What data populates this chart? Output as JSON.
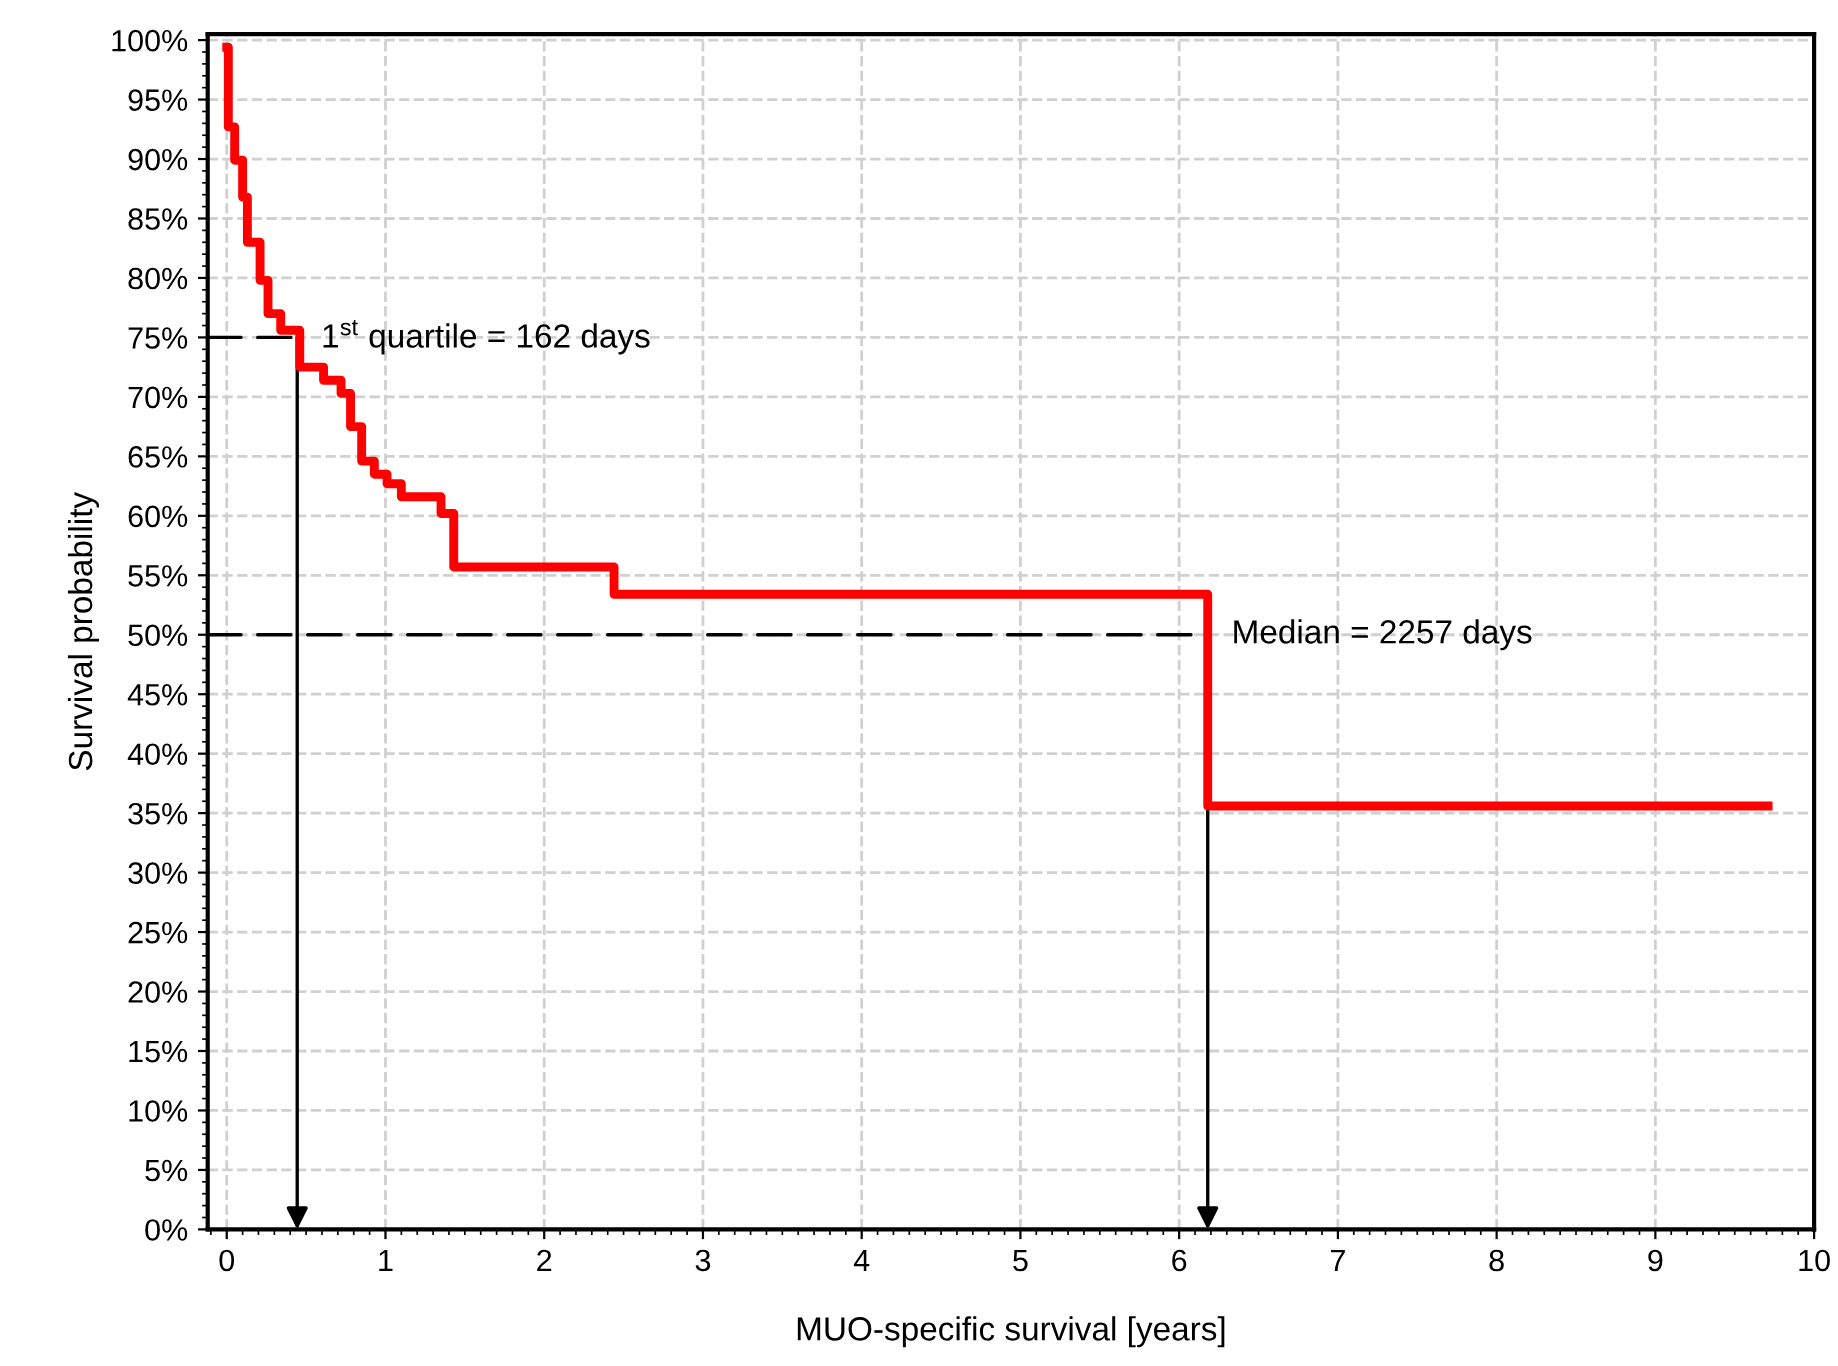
{
  "chart_data": {
    "type": "step",
    "xlabel": "MUO-specific survival [years]",
    "ylabel": "Survival probability",
    "x": [
      0,
      0.01,
      0.05,
      0.1,
      0.13,
      0.21,
      0.26,
      0.34,
      0.46,
      0.61,
      0.72,
      0.78,
      0.85,
      0.93,
      1.01,
      1.1,
      1.35,
      1.43,
      2.44,
      6.18,
      9.71
    ],
    "series": [
      {
        "color": "#ff0000",
        "values": [
          99.4,
          92.7,
          89.9,
          86.8,
          83.0,
          79.8,
          77.0,
          75.6,
          72.5,
          71.4,
          70.3,
          67.5,
          64.6,
          63.5,
          62.7,
          61.6,
          60.2,
          55.7,
          53.4,
          35.6,
          35.6
        ]
      }
    ],
    "xlim": [
      -0.12,
      10
    ],
    "xticks": [
      0,
      1,
      2,
      3,
      4,
      5,
      6,
      7,
      8,
      9,
      10
    ],
    "ylim": [
      0,
      100.5
    ],
    "yticks": [
      {
        "value": 0,
        "label": "0%"
      },
      {
        "value": 5,
        "label": "5%"
      },
      {
        "value": 10,
        "label": "10%"
      },
      {
        "value": 15,
        "label": "15%"
      },
      {
        "value": 20,
        "label": "20%"
      },
      {
        "value": 25,
        "label": "25%"
      },
      {
        "value": 30,
        "label": "30%"
      },
      {
        "value": 35,
        "label": "35%"
      },
      {
        "value": 40,
        "label": "40%"
      },
      {
        "value": 45,
        "label": "45%"
      },
      {
        "value": 50,
        "label": "50%"
      },
      {
        "value": 55,
        "label": "55%"
      },
      {
        "value": 60,
        "label": "60%"
      },
      {
        "value": 65,
        "label": "65%"
      },
      {
        "value": 70,
        "label": "70%"
      },
      {
        "value": 75,
        "label": "75%"
      },
      {
        "value": 80,
        "label": "80%"
      },
      {
        "value": 85,
        "label": "85%"
      },
      {
        "value": 90,
        "label": "90%"
      },
      {
        "value": 95,
        "label": "95%"
      },
      {
        "value": 100,
        "label": "100%"
      }
    ],
    "annotations": [
      {
        "text": "1$^{st}$ quartile = 162 days",
        "x": 0.444,
        "y": 75
      },
      {
        "text": "Median = 2257 days",
        "x": 6.18,
        "y": 50
      }
    ],
    "grid": true,
    "marker": "none",
    "line_style": "solid"
  }
}
